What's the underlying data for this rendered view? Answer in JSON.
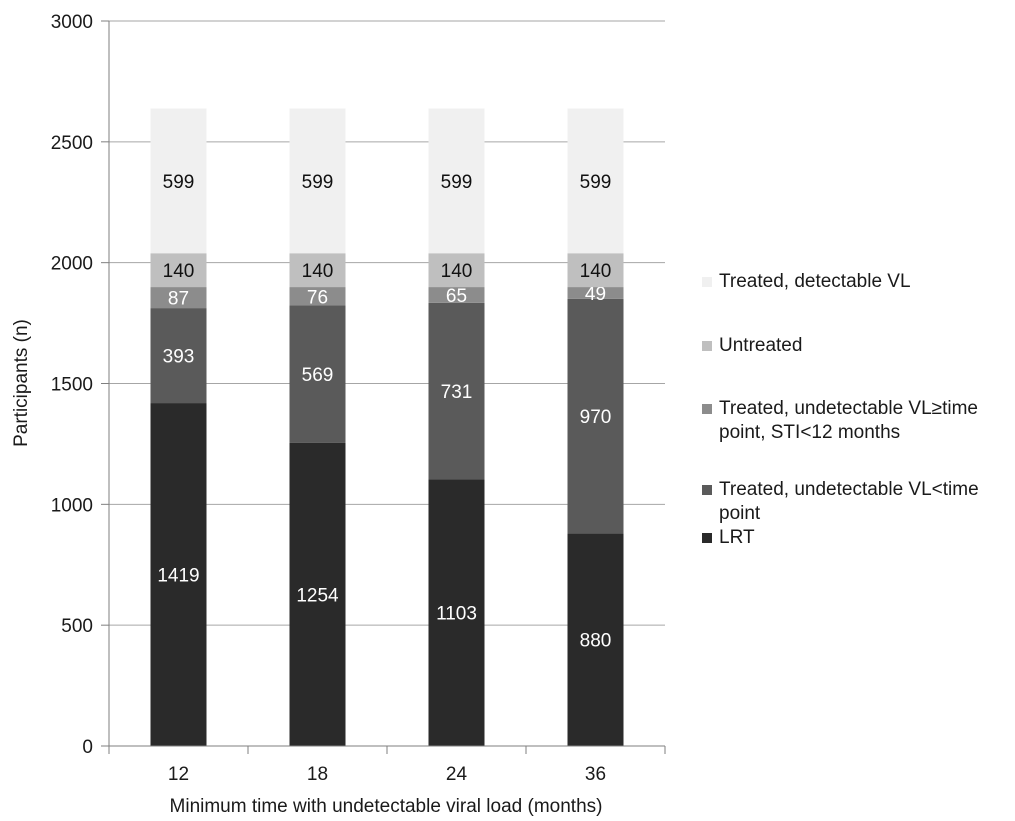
{
  "chart_data": {
    "type": "bar",
    "stacked": true,
    "title": "",
    "xlabel": "Minimum time with undetectable viral load (months)",
    "ylabel": "Participants (n)",
    "ylim": [
      0,
      3000
    ],
    "yticks": [
      "0",
      "500",
      "1000",
      "1500",
      "2000",
      "2500",
      "3000"
    ],
    "grid": true,
    "legend_position": "right",
    "categories": [
      "12",
      "18",
      "24",
      "36"
    ],
    "series": [
      {
        "name": "LRT",
        "color": "#2a2a2a",
        "label_color": "#ffffff",
        "values": [
          1419,
          1254,
          1103,
          880
        ]
      },
      {
        "name": "Treated, undetectable VL<time point",
        "color": "#5a5a5a",
        "label_color": "#ffffff",
        "values": [
          393,
          569,
          731,
          970
        ]
      },
      {
        "name": "Treated, undetectable VL≥time point, STI<12 months",
        "color": "#8c8c8c",
        "label_color": "#ffffff",
        "values": [
          87,
          76,
          65,
          49
        ]
      },
      {
        "name": "Untreated",
        "color": "#bfbfbf",
        "label_color": "#111111",
        "values": [
          140,
          140,
          140,
          140
        ]
      },
      {
        "name": "Treated, detectable VL",
        "color": "#f0f0f0",
        "label_color": "#111111",
        "values": [
          599,
          599,
          599,
          599
        ]
      }
    ]
  }
}
